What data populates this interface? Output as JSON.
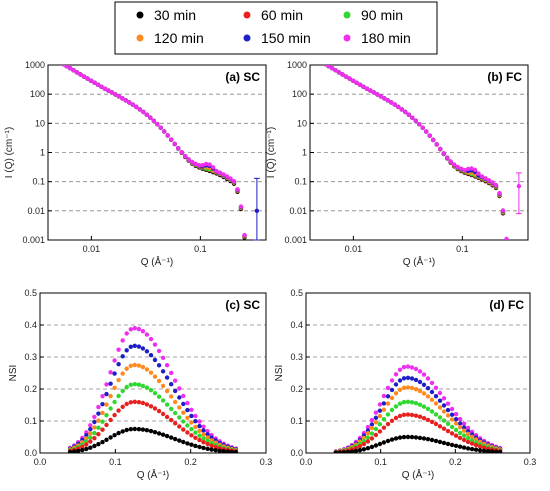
{
  "legend": [
    {
      "label": "30 min",
      "color": "#000000"
    },
    {
      "label": "60 min",
      "color": "#e8201f"
    },
    {
      "label": "90 min",
      "color": "#2ed82e"
    },
    {
      "label": "120 min",
      "color": "#ff8a1e"
    },
    {
      "label": "150 min",
      "color": "#1f1fc8"
    },
    {
      "label": "180 min",
      "color": "#f02ef0"
    }
  ],
  "chart_data": [
    {
      "type": "scatter",
      "title": "(a) SC",
      "xlabel": "Q (Å⁻¹)",
      "ylabel": "I (Q) (cm⁻¹)",
      "xscale": "log",
      "yscale": "log",
      "xlim": [
        0.004,
        0.4
      ],
      "ylim": [
        0.001,
        1000
      ],
      "xticks": [
        0.01,
        0.1
      ],
      "xticklabels": [
        "0.01",
        "0.1"
      ],
      "yticks": [
        0.001,
        0.01,
        0.1,
        1,
        10,
        100,
        1000
      ],
      "yticklabels": [
        "0.001",
        "0.01",
        "0.1",
        "1",
        "10",
        "100",
        "1000"
      ],
      "grid": "horizontal dashed",
      "series": [
        {
          "name": "30 min",
          "peak_q": 0.115,
          "peak_i": 0.17,
          "valley_i": 0.28
        },
        {
          "name": "60 min",
          "peak_q": 0.115,
          "peak_i": 0.22,
          "valley_i": 0.3
        },
        {
          "name": "90 min",
          "peak_q": 0.115,
          "peak_i": 0.27,
          "valley_i": 0.31
        },
        {
          "name": "120 min",
          "peak_q": 0.115,
          "peak_i": 0.31,
          "valley_i": 0.32
        },
        {
          "name": "150 min",
          "peak_q": 0.115,
          "peak_i": 0.36,
          "valley_i": 0.33
        },
        {
          "name": "180 min",
          "peak_q": 0.115,
          "peak_i": 0.4,
          "valley_i": 0.34
        }
      ],
      "error_bars": [
        {
          "series": "150 min",
          "q": 0.33,
          "i": 0.01,
          "low": 0.001,
          "high": 0.13
        }
      ]
    },
    {
      "type": "scatter",
      "title": "(b) FC",
      "xlabel": "Q (Å⁻¹)",
      "ylabel": "I (Q) (cm⁻¹)",
      "xscale": "log",
      "yscale": "log",
      "xlim": [
        0.004,
        0.4
      ],
      "ylim": [
        0.001,
        1000
      ],
      "xticks": [
        0.01,
        0.1
      ],
      "xticklabels": [
        "0.01",
        "0.1"
      ],
      "yticks": [
        0.001,
        0.01,
        0.1,
        1,
        10,
        100,
        1000
      ],
      "yticklabels": [
        "0.001",
        "0.01",
        "0.1",
        "1",
        "10",
        "100",
        "1000"
      ],
      "grid": "horizontal dashed",
      "series": [
        {
          "name": "30 min",
          "peak_q": 0.12,
          "peak_i": 0.1,
          "valley_i": 0.2
        },
        {
          "name": "60 min",
          "peak_q": 0.12,
          "peak_i": 0.13,
          "valley_i": 0.21
        },
        {
          "name": "90 min",
          "peak_q": 0.12,
          "peak_i": 0.17,
          "valley_i": 0.22
        },
        {
          "name": "120 min",
          "peak_q": 0.12,
          "peak_i": 0.2,
          "valley_i": 0.23
        },
        {
          "name": "150 min",
          "peak_q": 0.12,
          "peak_i": 0.24,
          "valley_i": 0.24
        },
        {
          "name": "180 min",
          "peak_q": 0.12,
          "peak_i": 0.28,
          "valley_i": 0.25
        }
      ],
      "error_bars": [
        {
          "series": "180 min",
          "q": 0.33,
          "i": 0.07,
          "low": 0.008,
          "high": 0.2
        }
      ]
    },
    {
      "type": "scatter",
      "title": "(c) SC",
      "xlabel": "Q (Å⁻¹)",
      "ylabel": "NSI",
      "xlim": [
        0.0,
        0.3
      ],
      "ylim": [
        0.0,
        0.5
      ],
      "xticks": [
        0.0,
        0.1,
        0.2,
        0.3
      ],
      "xticklabels": [
        "0.0",
        "0.1",
        "0.2",
        "0.3"
      ],
      "yticks": [
        0.0,
        0.1,
        0.2,
        0.3,
        0.4,
        0.5
      ],
      "yticklabels": [
        "0.0",
        "0.1",
        "0.2",
        "0.3",
        "0.4",
        "0.5"
      ],
      "grid": "horizontal dashed",
      "series": [
        {
          "name": "30 min",
          "peak_q": 0.125,
          "peak_nsi": 0.075
        },
        {
          "name": "60 min",
          "peak_q": 0.125,
          "peak_nsi": 0.16
        },
        {
          "name": "90 min",
          "peak_q": 0.125,
          "peak_nsi": 0.215
        },
        {
          "name": "120 min",
          "peak_q": 0.125,
          "peak_nsi": 0.275
        },
        {
          "name": "150 min",
          "peak_q": 0.125,
          "peak_nsi": 0.335
        },
        {
          "name": "180 min",
          "peak_q": 0.125,
          "peak_nsi": 0.39
        }
      ]
    },
    {
      "type": "scatter",
      "title": "(d) FC",
      "xlabel": "Q (Å⁻¹)",
      "ylabel": "NSI",
      "xlim": [
        0.0,
        0.3
      ],
      "ylim": [
        0.0,
        0.5
      ],
      "xticks": [
        0.0,
        0.1,
        0.2,
        0.3
      ],
      "xticklabels": [
        "0.0",
        "0.1",
        "0.2",
        "0.3"
      ],
      "yticks": [
        0.0,
        0.1,
        0.2,
        0.3,
        0.4,
        0.5
      ],
      "yticklabels": [
        "0.0",
        "0.1",
        "0.2",
        "0.3",
        "0.4",
        "0.5"
      ],
      "grid": "horizontal dashed",
      "series": [
        {
          "name": "30 min",
          "peak_q": 0.135,
          "peak_nsi": 0.05
        },
        {
          "name": "60 min",
          "peak_q": 0.135,
          "peak_nsi": 0.12
        },
        {
          "name": "90 min",
          "peak_q": 0.135,
          "peak_nsi": 0.16
        },
        {
          "name": "120 min",
          "peak_q": 0.135,
          "peak_nsi": 0.205
        },
        {
          "name": "150 min",
          "peak_q": 0.135,
          "peak_nsi": 0.235
        },
        {
          "name": "180 min",
          "peak_q": 0.135,
          "peak_nsi": 0.27
        }
      ]
    }
  ]
}
